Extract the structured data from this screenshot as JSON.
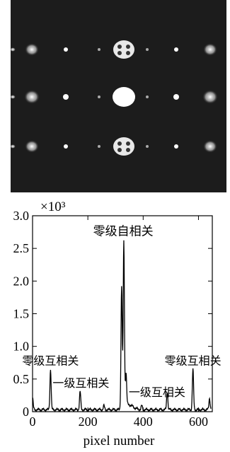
{
  "image_panel": {
    "description_free": true,
    "background": "#1c1c1c",
    "spot_color": "#ffffff"
  },
  "chart_data": {
    "type": "line",
    "xlabel": "pixel number",
    "ylabel": "",
    "multiplier_label": "×10³",
    "xlim": [
      0,
      650
    ],
    "ylim": [
      0,
      3.0
    ],
    "xticks": [
      0,
      200,
      400,
      600
    ],
    "yticks": [
      0,
      0.5,
      1.0,
      1.5,
      2.0,
      2.5,
      3.0
    ],
    "ytick_labels": [
      "0",
      "0.5",
      "1.0",
      "1.5",
      "2.0",
      "2.5",
      "3.0"
    ],
    "series": [
      {
        "peaks": [
          {
            "x": 0,
            "y": 0.18
          },
          {
            "x": 65,
            "y": 0.62
          },
          {
            "x": 172,
            "y": 0.28
          },
          {
            "x": 258,
            "y": 0.06
          },
          {
            "x": 322,
            "y": 1.9
          },
          {
            "x": 330,
            "y": 2.52
          },
          {
            "x": 338,
            "y": 0.5
          },
          {
            "x": 395,
            "y": 0.06
          },
          {
            "x": 487,
            "y": 0.28
          },
          {
            "x": 580,
            "y": 0.62
          },
          {
            "x": 640,
            "y": 0.18
          }
        ]
      }
    ],
    "annotations": [
      {
        "text": "零级自相关",
        "x": 328,
        "y": 2.7
      },
      {
        "text": "零级互相关",
        "x": 65,
        "y": 0.72
      },
      {
        "text": "一级互相关",
        "x": 175,
        "y": 0.38
      },
      {
        "text": "一级互相关",
        "x": 450,
        "y": 0.24
      },
      {
        "text": "零级互相关",
        "x": 580,
        "y": 0.72
      }
    ]
  }
}
